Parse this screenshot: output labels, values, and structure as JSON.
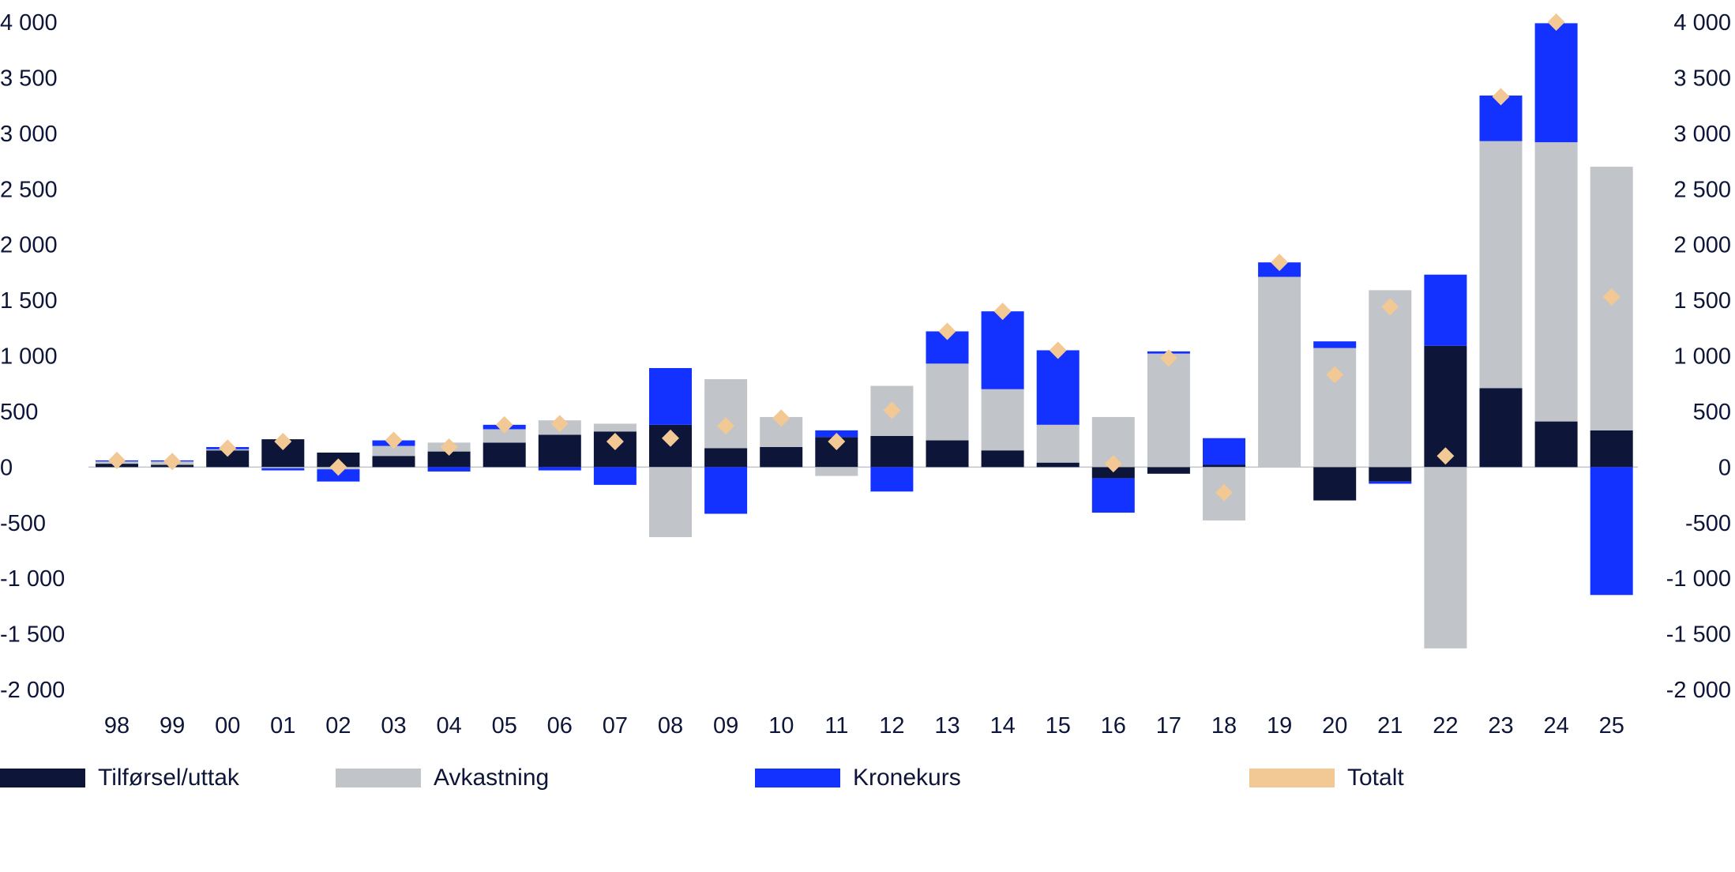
{
  "chart_data": {
    "type": "bar",
    "stacked": true,
    "categories": [
      "98",
      "99",
      "00",
      "01",
      "02",
      "03",
      "04",
      "05",
      "06",
      "07",
      "08",
      "09",
      "10",
      "11",
      "12",
      "13",
      "14",
      "15",
      "16",
      "17",
      "18",
      "19",
      "20",
      "21",
      "22",
      "23",
      "24",
      "25"
    ],
    "series": [
      {
        "name": "Tilførsel/uttak",
        "color": "#0d1538",
        "values": [
          30,
          20,
          150,
          250,
          130,
          100,
          140,
          220,
          290,
          320,
          380,
          170,
          180,
          270,
          280,
          240,
          150,
          40,
          -100,
          -60,
          20,
          0,
          -300,
          -130,
          1090,
          710,
          410,
          330
        ]
      },
      {
        "name": "Avkastning",
        "color": "#c1c4c9",
        "values": [
          20,
          30,
          10,
          -10,
          -20,
          90,
          80,
          120,
          130,
          70,
          -630,
          620,
          270,
          -80,
          450,
          690,
          550,
          340,
          450,
          1020,
          -480,
          1710,
          1070,
          1590,
          -1630,
          2220,
          2510,
          2370
        ]
      },
      {
        "name": "Kronekurs",
        "color": "#1432ff",
        "values": [
          10,
          10,
          20,
          -20,
          -110,
          50,
          -40,
          40,
          -30,
          -160,
          510,
          -420,
          0,
          60,
          -220,
          290,
          700,
          670,
          -310,
          20,
          240,
          130,
          60,
          -20,
          640,
          410,
          1070,
          -1150
        ]
      }
    ],
    "totals": {
      "name": "Totalt",
      "color": "#f2c894",
      "values": [
        60,
        50,
        170,
        230,
        0,
        240,
        180,
        380,
        390,
        230,
        260,
        370,
        440,
        230,
        510,
        1220,
        1400,
        1050,
        30,
        980,
        -230,
        1840,
        830,
        1440,
        100,
        3330,
        4000,
        1530
      ]
    },
    "ylim": [
      -2000,
      4000
    ],
    "yticks": [
      4000,
      3500,
      3000,
      2500,
      2000,
      1500,
      1000,
      500,
      0,
      -500,
      -1000,
      -1500,
      -2000
    ],
    "ytick_labels": [
      "4 000",
      "3 500",
      "3 000",
      "2 500",
      "2 000",
      "1 500",
      "1 000",
      "500",
      "0",
      "-500",
      "-1 000",
      "-1 500",
      "-2 000"
    ],
    "title": "",
    "xlabel": "",
    "ylabel": "",
    "grid": false,
    "legend_position": "bottom"
  },
  "legend": [
    {
      "label": "Tilførsel/uttak",
      "color": "#0d1538"
    },
    {
      "label": "Avkastning",
      "color": "#c1c4c9"
    },
    {
      "label": "Kronekurs",
      "color": "#1432ff"
    },
    {
      "label": "Totalt",
      "color": "#f2c894"
    }
  ]
}
